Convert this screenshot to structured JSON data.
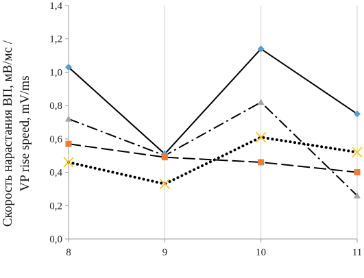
{
  "chart_data": {
    "type": "line",
    "title": "",
    "xlabel": "",
    "ylabel": "Скорость нарастания ВП, мВ/мс /",
    "ylabel2": "VP rise speed, mV/ms",
    "x": [
      8,
      9,
      10,
      11
    ],
    "x_tick_labels": [
      "8",
      "9",
      "10",
      "11"
    ],
    "ylim": [
      0,
      1.4
    ],
    "y_ticks": [
      0,
      0.2,
      0.4,
      0.6,
      0.8,
      1.0,
      1.2,
      1.4
    ],
    "y_tick_labels": [
      "0,0",
      "0,2",
      "0,4",
      "0,6",
      "0,8",
      "1,0",
      "1,2",
      "1,4"
    ],
    "grid": {
      "horizontal": false,
      "vertical": true
    },
    "legend": "none",
    "series": [
      {
        "values": [
          1.03,
          0.51,
          1.14,
          0.75
        ],
        "line_color": "#000000",
        "line_style": "solid",
        "marker": "diamond",
        "marker_color": "#5B9BD5"
      },
      {
        "values": [
          0.72,
          0.5,
          0.82,
          0.26
        ],
        "line_color": "#000000",
        "line_style": "dash-dot",
        "marker": "triangle",
        "marker_color": "#A5A5A5"
      },
      {
        "values": [
          0.57,
          0.49,
          0.46,
          0.4
        ],
        "line_color": "#000000",
        "line_style": "long-dash",
        "marker": "square",
        "marker_color": "#ED7D31"
      },
      {
        "values": [
          0.46,
          0.33,
          0.61,
          0.52
        ],
        "line_color": "#000000",
        "line_style": "dotted",
        "marker": "x",
        "marker_color": "#FFC000"
      }
    ]
  }
}
